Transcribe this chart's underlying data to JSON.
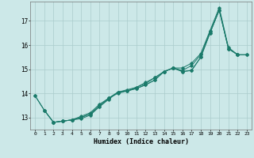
{
  "title": "",
  "xlabel": "Humidex (Indice chaleur)",
  "background_color": "#cce8e8",
  "grid_color": "#aacccc",
  "line_color": "#1a7a6a",
  "xlim": [
    -0.5,
    23.5
  ],
  "ylim": [
    12.5,
    17.8
  ],
  "yticks": [
    13,
    14,
    15,
    16,
    17
  ],
  "xticks": [
    0,
    1,
    2,
    3,
    4,
    5,
    6,
    7,
    8,
    9,
    10,
    11,
    12,
    13,
    14,
    15,
    16,
    17,
    18,
    19,
    20,
    21,
    22,
    23
  ],
  "lines": [
    {
      "x": [
        0,
        1,
        2,
        3,
        4,
        5,
        6,
        7,
        8,
        9,
        10,
        11,
        12,
        13,
        14,
        15,
        16,
        17,
        18,
        19,
        20,
        21,
        22
      ],
      "y": [
        13.9,
        13.3,
        12.8,
        12.85,
        12.9,
        13.05,
        13.2,
        13.55,
        13.8,
        14.05,
        14.1,
        14.2,
        14.35,
        14.55,
        14.9,
        15.05,
        14.9,
        14.95,
        15.5,
        16.5,
        17.45,
        15.85,
        15.6
      ]
    },
    {
      "x": [
        1,
        2,
        3,
        4,
        5,
        6,
        7,
        8,
        9,
        10,
        11,
        12,
        13,
        14,
        15,
        16,
        17,
        18,
        19,
        20,
        21,
        22,
        23
      ],
      "y": [
        13.3,
        12.8,
        12.85,
        12.9,
        13.0,
        13.15,
        13.5,
        13.8,
        14.0,
        14.1,
        14.2,
        14.35,
        14.55,
        14.9,
        15.05,
        14.9,
        14.95,
        15.5,
        16.5,
        17.45,
        15.85,
        15.6,
        15.6
      ]
    },
    {
      "x": [
        0,
        1,
        2,
        3,
        4,
        5,
        6,
        7,
        8,
        9,
        10,
        11,
        12,
        13,
        14,
        15,
        16,
        17,
        18,
        19,
        20,
        21,
        22
      ],
      "y": [
        13.9,
        13.3,
        12.8,
        12.85,
        12.9,
        13.0,
        13.15,
        13.45,
        13.75,
        14.05,
        14.1,
        14.25,
        14.4,
        14.65,
        14.9,
        15.05,
        15.05,
        15.25,
        15.65,
        16.6,
        17.55,
        15.9,
        15.6
      ]
    },
    {
      "x": [
        2,
        3,
        4,
        5,
        6,
        7,
        8,
        9,
        10,
        11,
        12,
        13,
        14,
        15,
        16,
        17,
        18,
        19,
        20,
        21,
        22,
        23
      ],
      "y": [
        12.8,
        12.85,
        12.9,
        12.95,
        13.1,
        13.45,
        13.8,
        14.05,
        14.15,
        14.25,
        14.45,
        14.65,
        14.9,
        15.05,
        14.95,
        15.15,
        15.6,
        16.55,
        17.45,
        15.85,
        15.6,
        15.6
      ]
    }
  ]
}
